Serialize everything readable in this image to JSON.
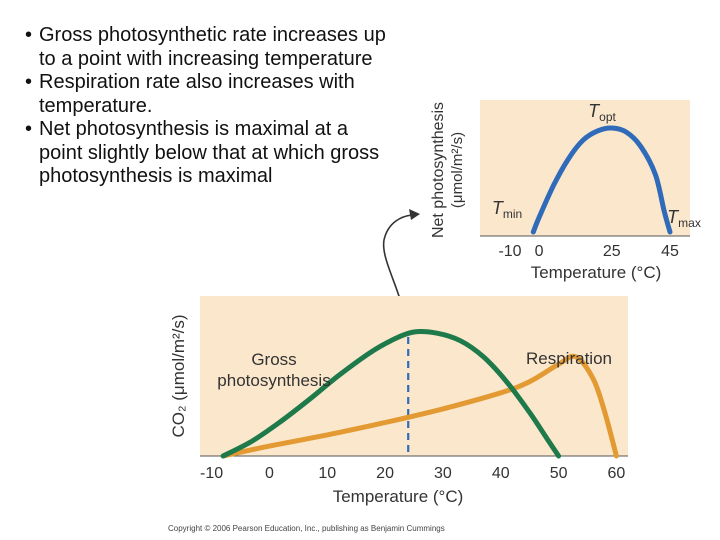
{
  "bullets": [
    "Gross photosynthetic rate increases up to a point with increasing temperature",
    "Respiration rate also increases with temperature.",
    "Net photosynthesis is maximal at a point slightly below that at which gross photosynthesis is maximal"
  ],
  "colors": {
    "panel_bg": "#FBE8CC",
    "inset_line": "#2F6BB8",
    "gross_line": "#1E7A4A",
    "respiration_line": "#E39A33",
    "arrow": "#333333"
  },
  "chart_data": [
    {
      "type": "line",
      "id": "inset",
      "ylabel": "Net photosynthesis",
      "ylabel_unit": "(μmol/m²/s)",
      "xlabel": "Temperature (°C)",
      "xticks": [
        -10,
        0,
        25,
        45
      ],
      "xlim": [
        -10,
        45
      ],
      "ylim": [
        0,
        1
      ],
      "annotations": [
        {
          "text": "T",
          "sub": "opt",
          "x": 25
        },
        {
          "text": "T",
          "sub": "min",
          "x": -10
        },
        {
          "text": "T",
          "sub": "max",
          "x": 45
        }
      ],
      "series": [
        {
          "values": [
            [
              -2,
              0.0
            ],
            [
              0,
              0.14
            ],
            [
              5,
              0.45
            ],
            [
              10,
              0.7
            ],
            [
              15,
              0.88
            ],
            [
              20,
              0.97
            ],
            [
              25,
              1.0
            ],
            [
              30,
              0.96
            ],
            [
              35,
              0.82
            ],
            [
              40,
              0.55
            ],
            [
              43,
              0.2
            ],
            [
              45,
              0.0
            ]
          ]
        }
      ]
    },
    {
      "type": "line",
      "id": "main",
      "ylabel": "CO₂ (μmol/m²/s)",
      "xlabel": "Temperature (°C)",
      "xticks": [
        -10,
        0,
        10,
        20,
        30,
        40,
        50,
        60
      ],
      "xlim": [
        -12,
        62
      ],
      "ylim": [
        0,
        1
      ],
      "dashed_x": 24,
      "series": [
        {
          "name": "Gross photosynthesis",
          "values": [
            [
              -8,
              0.0
            ],
            [
              -3,
              0.12
            ],
            [
              2,
              0.28
            ],
            [
              7,
              0.46
            ],
            [
              12,
              0.65
            ],
            [
              17,
              0.82
            ],
            [
              21,
              0.93
            ],
            [
              25,
              1.0
            ],
            [
              29,
              0.99
            ],
            [
              33,
              0.93
            ],
            [
              37,
              0.8
            ],
            [
              41,
              0.6
            ],
            [
              45,
              0.35
            ],
            [
              48,
              0.14
            ],
            [
              50,
              0.0
            ]
          ]
        },
        {
          "name": "Respiration",
          "values": [
            [
              -8,
              0.0
            ],
            [
              0,
              0.08
            ],
            [
              10,
              0.17
            ],
            [
              20,
              0.27
            ],
            [
              30,
              0.38
            ],
            [
              40,
              0.51
            ],
            [
              45,
              0.6
            ],
            [
              50,
              0.74
            ],
            [
              53,
              0.8
            ],
            [
              56,
              0.62
            ],
            [
              58,
              0.35
            ],
            [
              60,
              0.0
            ]
          ]
        }
      ]
    }
  ],
  "copyright": "Copyright © 2006 Pearson Education, Inc., publishing as Benjamin Cummings"
}
